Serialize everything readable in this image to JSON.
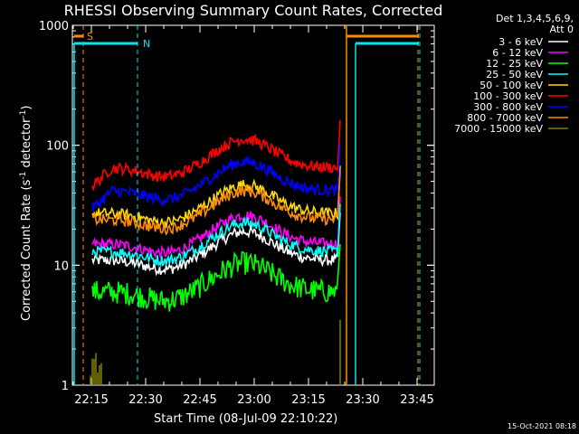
{
  "chart_data": {
    "type": "line",
    "title": "RHESSI Observing Summary Count Rates, Corrected",
    "xlabel": "Start Time (08-Jul-09 22:10:22)",
    "ylabel_main": "Corrected Count Rate (s",
    "ylabel_sup1": "-1",
    "ylabel_mid": " detector",
    "ylabel_sup2": "-1",
    "ylabel_end": ")",
    "y_scale": "log",
    "ylim": [
      1,
      1000
    ],
    "xlim_minutes": [
      22.1,
      23.8
    ],
    "x_tick_labels": [
      "22:15",
      "22:30",
      "22:45",
      "23:00",
      "23:15",
      "23:30",
      "23:45"
    ],
    "y_tick_labels": [
      "1",
      "10",
      "100",
      "1000"
    ],
    "legend_header": [
      "Det 1,3,4,5,6,9,",
      "Att 0"
    ],
    "legend_position": "right",
    "timestamp": "15-Oct-2021 08:18",
    "flags": [
      {
        "label": "S",
        "color": "#ff8c00",
        "level": 800
      },
      {
        "label": "N",
        "color": "#00e5ee",
        "level": 650
      }
    ],
    "series": [
      {
        "name": "3 - 6 keV",
        "color": "#ffffff",
        "level": 11,
        "trend": "mid"
      },
      {
        "name": "6 - 12 keV",
        "color": "#ff00ff",
        "level": 15,
        "trend": "mid"
      },
      {
        "name": "12 - 25 keV",
        "color": "#00ff00",
        "level": 6,
        "trend": "low"
      },
      {
        "name": "25 - 50 keV",
        "color": "#00ffff",
        "level": 13,
        "trend": "mid"
      },
      {
        "name": "50 - 100 keV",
        "color": "#ffd700",
        "level": 27,
        "trend": "mid"
      },
      {
        "name": "100 - 300 keV",
        "color": "#ff0000",
        "level": 65,
        "trend": "high"
      },
      {
        "name": "300 - 800 keV",
        "color": "#0000ff",
        "level": 42,
        "trend": "high"
      },
      {
        "name": "800 - 7000 keV",
        "color": "#ff8c00",
        "level": 24,
        "trend": "mid"
      },
      {
        "name": "7000 - 15000 keV",
        "color": "#808000",
        "level": 1.5,
        "trend": "none"
      }
    ]
  }
}
